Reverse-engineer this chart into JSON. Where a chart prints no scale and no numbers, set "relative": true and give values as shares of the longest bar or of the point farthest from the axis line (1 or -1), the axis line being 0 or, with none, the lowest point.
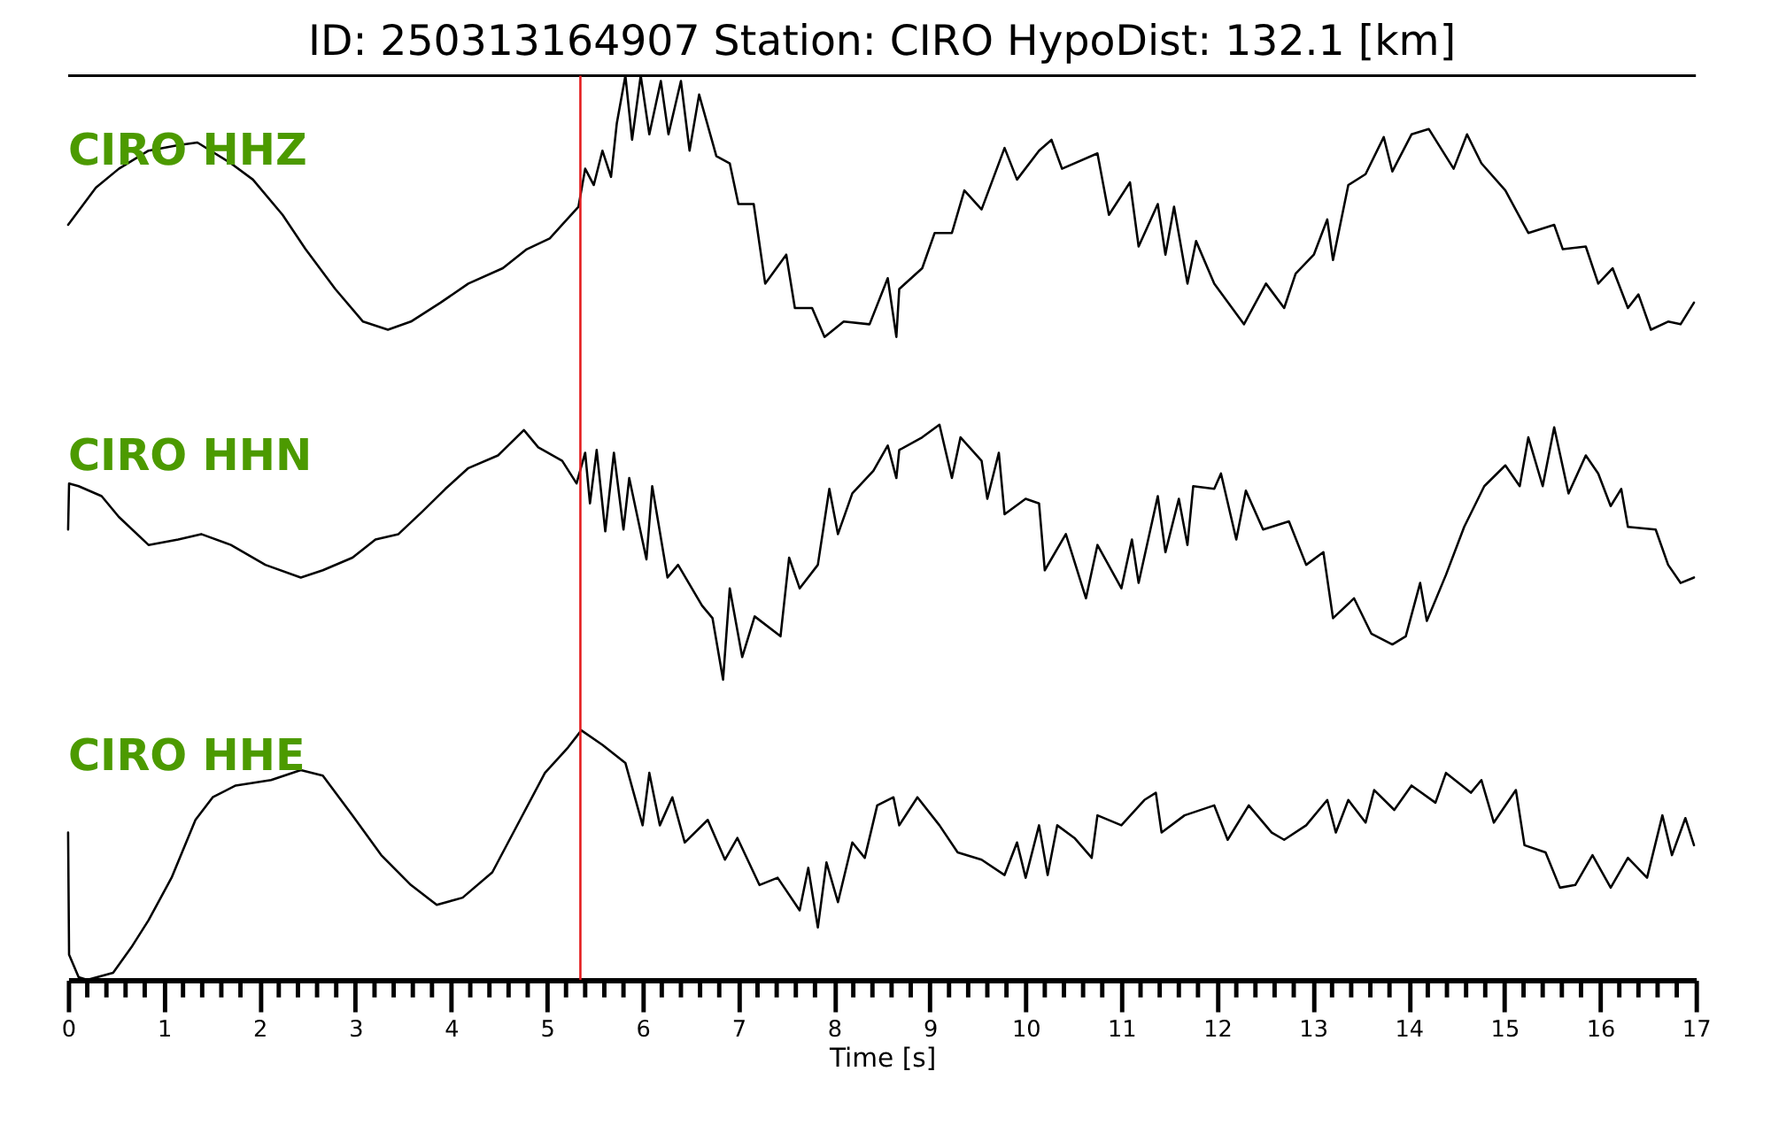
{
  "chart_data": {
    "type": "line",
    "relative": true,
    "title": "ID: 250313164907   Station: CIRO   HypoDist:   132.1 [km]",
    "xlabel": "Time [s]",
    "xlim": [
      0,
      17
    ],
    "xticks": [
      0,
      {
        "value": 0.2,
        "label": null
      },
      {
        "value": 0.4,
        "label": null
      },
      {
        "value": 0.6,
        "label": null
      },
      {
        "value": 0.8,
        "label": null
      },
      1,
      {
        "value": 1.2,
        "label": null
      },
      {
        "value": 1.4,
        "label": null
      },
      {
        "value": 1.6,
        "label": null
      },
      {
        "value": 1.8,
        "label": null
      },
      2,
      {
        "value": 2.2,
        "label": null
      },
      {
        "value": 2.4,
        "label": null
      },
      {
        "value": 2.6,
        "label": null
      },
      {
        "value": 2.8,
        "label": null
      },
      3,
      {
        "value": 3.2,
        "label": null
      },
      {
        "value": 3.4,
        "label": null
      },
      {
        "value": 3.6,
        "label": null
      },
      {
        "value": 3.8,
        "label": null
      },
      4,
      {
        "value": 4.2,
        "label": null
      },
      {
        "value": 4.4,
        "label": null
      },
      {
        "value": 4.6,
        "label": null
      },
      {
        "value": 4.8,
        "label": null
      },
      5,
      {
        "value": 5.2,
        "label": null
      },
      {
        "value": 5.4,
        "label": null
      },
      {
        "value": 5.6,
        "label": null
      },
      {
        "value": 5.8,
        "label": null
      },
      6,
      {
        "value": 6.2,
        "label": null
      },
      {
        "value": 6.4,
        "label": null
      },
      {
        "value": 6.6,
        "label": null
      },
      {
        "value": 6.8,
        "label": null
      },
      7,
      {
        "value": 7.2,
        "label": null
      },
      {
        "value": 7.4,
        "label": null
      },
      {
        "value": 7.6,
        "label": null
      },
      {
        "value": 7.8,
        "label": null
      },
      8,
      {
        "value": 8.2,
        "label": null
      },
      {
        "value": 8.4,
        "label": null
      },
      {
        "value": 8.6,
        "label": null
      },
      {
        "value": 8.8,
        "label": null
      },
      9,
      {
        "value": 9.2,
        "label": null
      },
      {
        "value": 9.4,
        "label": null
      },
      {
        "value": 9.6,
        "label": null
      },
      {
        "value": 9.8,
        "label": null
      },
      10,
      {
        "value": 10.2,
        "label": null
      },
      {
        "value": 10.4,
        "label": null
      },
      {
        "value": 10.6,
        "label": null
      },
      {
        "value": 10.8,
        "label": null
      },
      11,
      {
        "value": 11.2,
        "label": null
      },
      {
        "value": 11.4,
        "label": null
      },
      {
        "value": 11.6,
        "label": null
      },
      {
        "value": 11.8,
        "label": null
      },
      12,
      {
        "value": 12.2,
        "label": null
      },
      {
        "value": 12.4,
        "label": null
      },
      {
        "value": 12.6,
        "label": null
      },
      {
        "value": 12.8,
        "label": null
      },
      13,
      {
        "value": 13.2,
        "label": null
      },
      {
        "value": 13.4,
        "label": null
      },
      {
        "value": 13.6,
        "label": null
      },
      {
        "value": 13.8,
        "label": null
      },
      14,
      {
        "value": 14.2,
        "label": null
      },
      {
        "value": 14.4,
        "label": null
      },
      {
        "value": 14.6,
        "label": null
      },
      {
        "value": 14.8,
        "label": null
      },
      15,
      {
        "value": 15.2,
        "label": null
      },
      {
        "value": 15.4,
        "label": null
      },
      {
        "value": 15.6,
        "label": null
      },
      {
        "value": 15.8,
        "label": null
      },
      16,
      {
        "value": 16.2,
        "label": null
      },
      {
        "value": 16.4,
        "label": null
      },
      {
        "value": 16.6,
        "label": null
      },
      {
        "value": 16.8,
        "label": null
      },
      17
    ],
    "ref_lines": [
      {
        "axis": "x",
        "value": 5.35,
        "color": "#e41a1c"
      }
    ],
    "series": [
      {
        "name": "CIRO HHZ",
        "color": "#000000",
        "x": [
          0.0,
          0.29,
          0.53,
          0.84,
          1.15,
          1.35,
          1.7,
          1.93,
          2.24,
          2.48,
          2.79,
          3.08,
          3.34,
          3.58,
          3.89,
          4.18,
          4.54,
          4.79,
          5.03,
          5.33,
          5.4,
          5.49,
          5.58,
          5.67,
          5.73,
          5.82,
          5.89,
          5.98,
          6.07,
          6.19,
          6.27,
          6.4,
          6.49,
          6.59,
          6.77,
          6.91,
          7.0,
          7.16,
          7.28,
          7.5,
          7.59,
          7.77,
          7.9,
          8.1,
          8.37,
          8.56,
          8.65,
          8.68,
          8.92,
          9.05,
          9.23,
          9.36,
          9.54,
          9.78,
          9.91,
          10.14,
          10.27,
          10.38,
          10.75,
          10.87,
          11.09,
          11.18,
          11.38,
          11.46,
          11.55,
          11.69,
          11.78,
          11.97,
          12.28,
          12.51,
          12.7,
          12.82,
          13.01,
          13.15,
          13.21,
          13.37,
          13.55,
          13.74,
          13.83,
          14.03,
          14.21,
          14.47,
          14.61,
          14.76,
          15.01,
          15.25,
          15.52,
          15.61,
          15.85,
          15.98,
          16.13,
          16.29,
          16.4,
          16.53,
          16.71,
          16.84,
          16.98
        ],
        "values": [
          0.835,
          0.876,
          0.897,
          0.917,
          0.923,
          0.926,
          0.903,
          0.885,
          0.846,
          0.808,
          0.764,
          0.728,
          0.719,
          0.728,
          0.749,
          0.77,
          0.787,
          0.808,
          0.82,
          0.855,
          0.897,
          0.879,
          0.917,
          0.888,
          0.947,
          1.0,
          0.929,
          1.0,
          0.935,
          0.994,
          0.935,
          0.994,
          0.917,
          0.979,
          0.911,
          0.903,
          0.858,
          0.858,
          0.77,
          0.802,
          0.743,
          0.743,
          0.711,
          0.728,
          0.725,
          0.776,
          0.711,
          0.764,
          0.787,
          0.826,
          0.826,
          0.873,
          0.852,
          0.92,
          0.885,
          0.917,
          0.929,
          0.897,
          0.914,
          0.846,
          0.882,
          0.811,
          0.858,
          0.802,
          0.855,
          0.77,
          0.817,
          0.77,
          0.725,
          0.77,
          0.743,
          0.781,
          0.802,
          0.841,
          0.796,
          0.879,
          0.891,
          0.932,
          0.894,
          0.935,
          0.941,
          0.897,
          0.935,
          0.903,
          0.873,
          0.826,
          0.835,
          0.808,
          0.811,
          0.77,
          0.787,
          0.743,
          0.758,
          0.719,
          0.728,
          0.725,
          0.749
        ]
      },
      {
        "name": "CIRO HHN",
        "color": "#000000",
        "x": [
          0.0,
          0.01,
          0.11,
          0.35,
          0.53,
          0.84,
          1.15,
          1.39,
          1.7,
          2.06,
          2.43,
          2.66,
          2.97,
          3.21,
          3.45,
          3.7,
          3.94,
          4.18,
          4.49,
          4.76,
          4.91,
          5.16,
          5.31,
          5.4,
          5.45,
          5.52,
          5.61,
          5.7,
          5.8,
          5.86,
          6.04,
          6.1,
          6.26,
          6.37,
          6.62,
          6.73,
          6.84,
          6.91,
          7.04,
          7.17,
          7.44,
          7.53,
          7.64,
          7.83,
          7.95,
          8.04,
          8.19,
          8.41,
          8.56,
          8.65,
          8.68,
          8.92,
          9.1,
          9.23,
          9.32,
          9.54,
          9.6,
          9.72,
          9.78,
          10.0,
          10.14,
          10.2,
          10.42,
          10.63,
          10.75,
          11.0,
          11.11,
          11.18,
          11.38,
          11.46,
          11.6,
          11.69,
          11.75,
          11.97,
          12.04,
          12.2,
          12.3,
          12.48,
          12.75,
          12.93,
          13.11,
          13.21,
          13.43,
          13.61,
          13.83,
          13.97,
          14.12,
          14.19,
          14.39,
          14.58,
          14.79,
          15.01,
          15.16,
          15.25,
          15.4,
          15.52,
          15.67,
          15.85,
          15.98,
          16.11,
          16.22,
          16.29,
          16.58,
          16.71,
          16.84,
          16.98
        ],
        "values": [
          0.498,
          0.549,
          0.546,
          0.535,
          0.512,
          0.481,
          0.487,
          0.493,
          0.481,
          0.459,
          0.445,
          0.453,
          0.467,
          0.487,
          0.493,
          0.518,
          0.543,
          0.566,
          0.58,
          0.608,
          0.589,
          0.574,
          0.549,
          0.583,
          0.527,
          0.586,
          0.496,
          0.583,
          0.498,
          0.555,
          0.465,
          0.546,
          0.445,
          0.459,
          0.414,
          0.4,
          0.332,
          0.433,
          0.357,
          0.402,
          0.38,
          0.467,
          0.433,
          0.459,
          0.543,
          0.493,
          0.538,
          0.563,
          0.591,
          0.555,
          0.586,
          0.6,
          0.614,
          0.555,
          0.6,
          0.574,
          0.532,
          0.583,
          0.515,
          0.532,
          0.527,
          0.453,
          0.493,
          0.422,
          0.481,
          0.433,
          0.487,
          0.439,
          0.535,
          0.473,
          0.532,
          0.481,
          0.546,
          0.543,
          0.56,
          0.487,
          0.541,
          0.498,
          0.507,
          0.459,
          0.473,
          0.4,
          0.422,
          0.383,
          0.371,
          0.38,
          0.439,
          0.397,
          0.448,
          0.501,
          0.546,
          0.569,
          0.546,
          0.6,
          0.546,
          0.611,
          0.538,
          0.58,
          0.56,
          0.524,
          0.543,
          0.501,
          0.498,
          0.459,
          0.439,
          0.445
        ]
      },
      {
        "name": "CIRO HHE",
        "color": "#000000",
        "x": [
          0.0,
          0.01,
          0.11,
          0.2,
          0.47,
          0.66,
          0.84,
          1.08,
          1.33,
          1.51,
          1.75,
          2.12,
          2.43,
          2.66,
          2.97,
          3.27,
          3.58,
          3.85,
          4.12,
          4.43,
          4.72,
          4.98,
          5.22,
          5.36,
          5.58,
          5.82,
          6.0,
          6.07,
          6.18,
          6.31,
          6.44,
          6.68,
          6.86,
          6.99,
          7.22,
          7.41,
          7.64,
          7.73,
          7.83,
          7.92,
          8.04,
          8.19,
          8.32,
          8.45,
          8.62,
          8.68,
          8.87,
          9.1,
          9.29,
          9.54,
          9.78,
          9.91,
          10.0,
          10.14,
          10.23,
          10.33,
          10.51,
          10.69,
          10.75,
          11.0,
          11.24,
          11.36,
          11.42,
          11.66,
          11.97,
          12.11,
          12.33,
          12.57,
          12.7,
          12.93,
          13.15,
          13.24,
          13.37,
          13.55,
          13.64,
          13.85,
          14.03,
          14.28,
          14.39,
          14.65,
          14.76,
          14.89,
          15.12,
          15.21,
          15.43,
          15.58,
          15.74,
          15.92,
          16.11,
          16.29,
          16.49,
          16.65,
          16.75,
          16.89,
          16.98
        ],
        "values": [
          0.163,
          0.028,
          0.003,
          0.0,
          0.008,
          0.036,
          0.066,
          0.113,
          0.177,
          0.202,
          0.215,
          0.221,
          0.232,
          0.226,
          0.182,
          0.138,
          0.105,
          0.083,
          0.091,
          0.119,
          0.177,
          0.229,
          0.257,
          0.276,
          0.26,
          0.24,
          0.171,
          0.229,
          0.171,
          0.202,
          0.152,
          0.177,
          0.133,
          0.157,
          0.105,
          0.113,
          0.077,
          0.124,
          0.058,
          0.13,
          0.086,
          0.152,
          0.135,
          0.193,
          0.202,
          0.171,
          0.202,
          0.171,
          0.141,
          0.133,
          0.116,
          0.152,
          0.113,
          0.171,
          0.116,
          0.171,
          0.157,
          0.135,
          0.182,
          0.171,
          0.199,
          0.207,
          0.163,
          0.182,
          0.193,
          0.155,
          0.193,
          0.163,
          0.155,
          0.171,
          0.199,
          0.163,
          0.199,
          0.174,
          0.21,
          0.188,
          0.215,
          0.196,
          0.229,
          0.207,
          0.221,
          0.174,
          0.21,
          0.149,
          0.141,
          0.102,
          0.105,
          0.138,
          0.102,
          0.135,
          0.113,
          0.182,
          0.138,
          0.179,
          0.149
        ]
      }
    ]
  }
}
